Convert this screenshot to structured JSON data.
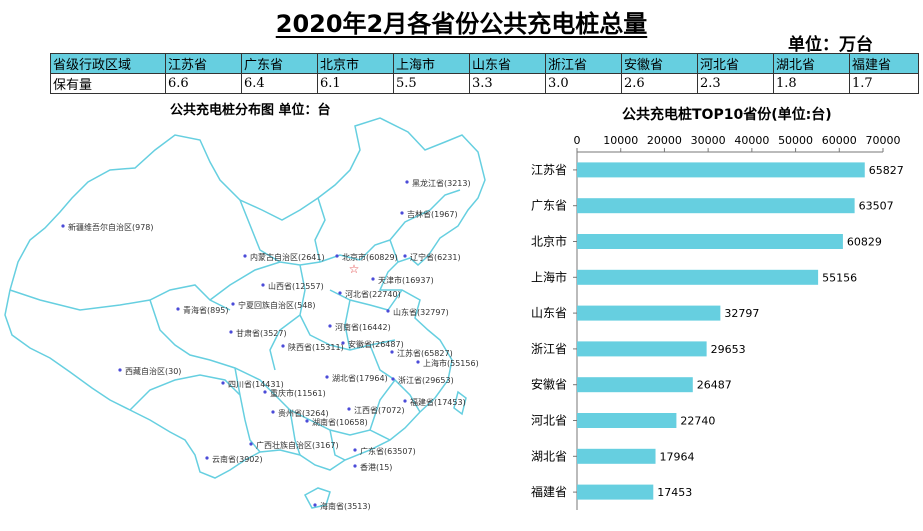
{
  "title": "2020年2月各省份公共充电桩总量",
  "unit_label": "单位：万台",
  "summary_table": {
    "header_label": "省级行政区域",
    "row_label": "保有量",
    "provinces": [
      "江苏省",
      "广东省",
      "北京市",
      "上海市",
      "山东省",
      "浙江省",
      "安徽省",
      "河北省",
      "湖北省",
      "福建省"
    ],
    "values": [
      "6.6",
      "6.4",
      "6.1",
      "5.5",
      "3.3",
      "3.0",
      "2.6",
      "2.3",
      "1.8",
      "1.7"
    ]
  },
  "map": {
    "title": "公共充电桩分布图  单位：台",
    "line_color": "#66cfe0",
    "dot_color": "#4b4bd8",
    "capital_star_color": "#e03c3c",
    "labels": [
      {
        "name": "黑龙江省",
        "value": "3213"
      },
      {
        "name": "吉林省",
        "value": "1967"
      },
      {
        "name": "辽宁省",
        "value": "6231"
      },
      {
        "name": "新疆维吾尔自治区",
        "value": "978"
      },
      {
        "name": "内蒙古自治区",
        "value": "2641"
      },
      {
        "name": "北京市",
        "value": "60829"
      },
      {
        "name": "天津市",
        "value": "16937"
      },
      {
        "name": "山西省",
        "value": "12557"
      },
      {
        "name": "河北省",
        "value": "22740"
      },
      {
        "name": "宁夏回族自治区",
        "value": "548"
      },
      {
        "name": "青海省",
        "value": "895"
      },
      {
        "name": "山东省",
        "value": "32797"
      },
      {
        "name": "甘肃省",
        "value": "3527"
      },
      {
        "name": "河南省",
        "value": "16442"
      },
      {
        "name": "陕西省",
        "value": "15311"
      },
      {
        "name": "安徽省",
        "value": "26487"
      },
      {
        "name": "江苏省",
        "value": "65827"
      },
      {
        "name": "上海市",
        "value": "55156"
      },
      {
        "name": "西藏自治区",
        "value": "30"
      },
      {
        "name": "湖北省",
        "value": "17964"
      },
      {
        "name": "浙江省",
        "value": "29653"
      },
      {
        "name": "四川省",
        "value": "14431"
      },
      {
        "name": "重庆市",
        "value": "11561"
      },
      {
        "name": "福建省",
        "value": "17453"
      },
      {
        "name": "贵州省",
        "value": "3264"
      },
      {
        "name": "江西省",
        "value": "7072"
      },
      {
        "name": "湖南省",
        "value": "10658"
      },
      {
        "name": "广西壮族自治区",
        "value": "3167"
      },
      {
        "name": "广东省",
        "value": "63507"
      },
      {
        "name": "云南省",
        "value": "3902"
      },
      {
        "name": "香港",
        "value": "15"
      },
      {
        "name": "海南省",
        "value": "3513"
      }
    ]
  },
  "chart_data": {
    "type": "bar",
    "orientation": "horizontal",
    "title": "公共充电桩TOP10省份(单位:台)",
    "categories": [
      "江苏省",
      "广东省",
      "北京市",
      "上海市",
      "山东省",
      "浙江省",
      "安徽省",
      "河北省",
      "湖北省",
      "福建省"
    ],
    "values": [
      65827,
      63507,
      60829,
      55156,
      32797,
      29653,
      26487,
      22740,
      17964,
      17453
    ],
    "xlim": [
      0,
      70000
    ],
    "xticks": [
      "0",
      "10000",
      "20000",
      "30000",
      "40000",
      "50000",
      "60000",
      "70000"
    ],
    "xlabel": "",
    "ylabel": "",
    "grid": false,
    "bar_color": "#66cfe0"
  }
}
